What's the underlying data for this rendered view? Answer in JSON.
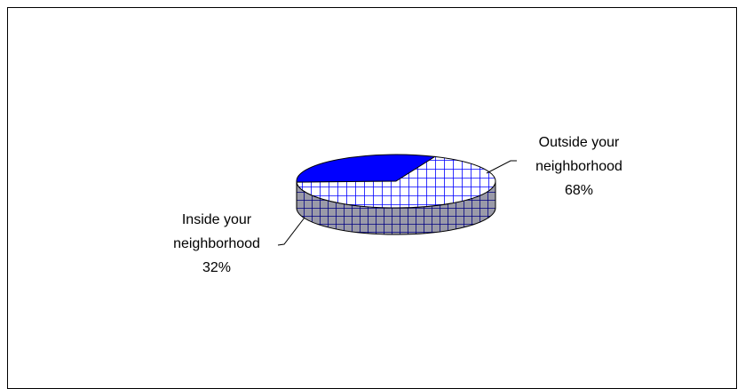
{
  "chart_data": {
    "type": "pie",
    "style": "3d",
    "slices": [
      {
        "label_line1": "Inside your",
        "label_line2": "neighborhood",
        "percent_label": "32%",
        "value": 32,
        "color": "#0000FF",
        "side_color": "#000099",
        "pattern": "solid"
      },
      {
        "label_line1": "Outside your",
        "label_line2": "neighborhood",
        "percent_label": "68%",
        "value": 68,
        "color": "#0000FF",
        "side_color": "#000080",
        "pattern": "crosshatch"
      }
    ],
    "legend": "none"
  }
}
